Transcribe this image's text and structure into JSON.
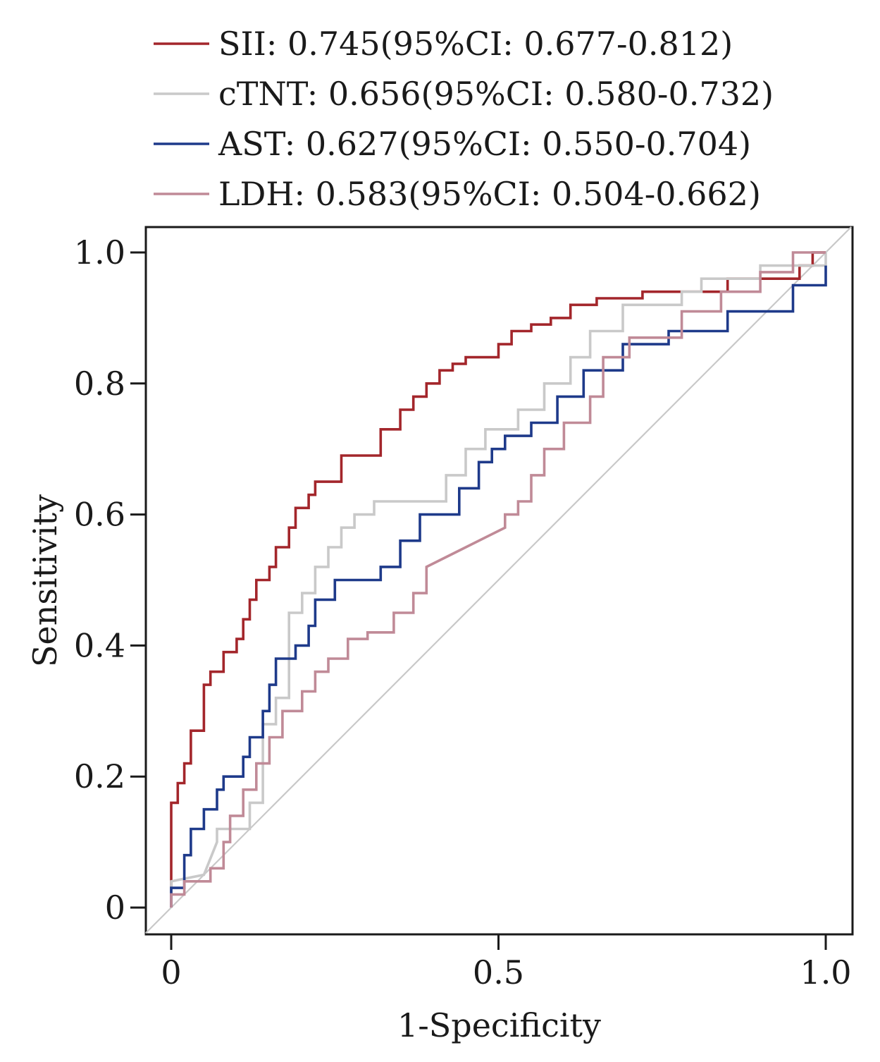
{
  "chart_data": {
    "type": "line",
    "xlabel": "1-Specificity",
    "ylabel": "Sensitivity",
    "xlim": [
      0,
      1.0
    ],
    "ylim": [
      0,
      1.0
    ],
    "x_ticks": [
      {
        "value": 0,
        "label": "0"
      },
      {
        "value": 0.5,
        "label": "0.5"
      },
      {
        "value": 1.0,
        "label": "1.0"
      }
    ],
    "y_ticks": [
      {
        "value": 0,
        "label": "0"
      },
      {
        "value": 0.2,
        "label": "0.2"
      },
      {
        "value": 0.4,
        "label": "0.4"
      },
      {
        "value": 0.6,
        "label": "0.6"
      },
      {
        "value": 0.8,
        "label": "0.8"
      },
      {
        "value": 1.0,
        "label": "1.0"
      }
    ],
    "legend_position": "top",
    "reference_line": {
      "x": [
        0,
        1
      ],
      "y": [
        0,
        1
      ],
      "color": "#c8c8c8"
    },
    "series": [
      {
        "name": "SII",
        "legend": "SII: 0.745(95%CI: 0.677-0.812)",
        "color": "#a3262b",
        "x": [
          0,
          0,
          0.01,
          0.01,
          0.02,
          0.02,
          0.03,
          0.03,
          0.05,
          0.05,
          0.06,
          0.06,
          0.08,
          0.08,
          0.1,
          0.1,
          0.11,
          0.11,
          0.12,
          0.12,
          0.13,
          0.13,
          0.15,
          0.15,
          0.16,
          0.16,
          0.18,
          0.18,
          0.19,
          0.19,
          0.21,
          0.21,
          0.22,
          0.22,
          0.23,
          0.23,
          0.24,
          0.24,
          0.26,
          0.26,
          0.32,
          0.32,
          0.35,
          0.35,
          0.37,
          0.37,
          0.39,
          0.39,
          0.41,
          0.41,
          0.43,
          0.43,
          0.45,
          0.45,
          0.5,
          0.5,
          0.52,
          0.52,
          0.55,
          0.55,
          0.58,
          0.58,
          0.61,
          0.61,
          0.65,
          0.65,
          0.72,
          0.72,
          0.85,
          0.85,
          0.96,
          0.96,
          0.98,
          0.98,
          1.0
        ],
        "y": [
          0,
          0.16,
          0.16,
          0.19,
          0.19,
          0.22,
          0.22,
          0.27,
          0.27,
          0.34,
          0.34,
          0.36,
          0.36,
          0.39,
          0.39,
          0.41,
          0.41,
          0.44,
          0.44,
          0.47,
          0.47,
          0.5,
          0.5,
          0.52,
          0.52,
          0.55,
          0.55,
          0.58,
          0.58,
          0.61,
          0.61,
          0.63,
          0.63,
          0.65,
          0.65,
          0.65,
          0.65,
          0.65,
          0.65,
          0.69,
          0.69,
          0.73,
          0.73,
          0.76,
          0.76,
          0.78,
          0.78,
          0.8,
          0.8,
          0.82,
          0.82,
          0.83,
          0.83,
          0.84,
          0.84,
          0.86,
          0.86,
          0.88,
          0.88,
          0.89,
          0.89,
          0.9,
          0.9,
          0.92,
          0.92,
          0.93,
          0.93,
          0.94,
          0.94,
          0.96,
          0.96,
          0.98,
          0.98,
          1.0,
          1.0
        ]
      },
      {
        "name": "cTNT",
        "legend": "cTNT: 0.656(95%CI: 0.580-0.732)",
        "color": "#c9c9c9",
        "x": [
          0,
          0,
          0.05,
          0.07,
          0.07,
          0.12,
          0.12,
          0.14,
          0.14,
          0.16,
          0.16,
          0.18,
          0.18,
          0.2,
          0.2,
          0.22,
          0.22,
          0.24,
          0.24,
          0.26,
          0.26,
          0.28,
          0.28,
          0.31,
          0.31,
          0.33,
          0.33,
          0.42,
          0.42,
          0.45,
          0.45,
          0.48,
          0.48,
          0.53,
          0.53,
          0.57,
          0.57,
          0.61,
          0.61,
          0.64,
          0.64,
          0.69,
          0.69,
          0.78,
          0.78,
          0.81,
          0.81,
          0.9,
          0.9,
          1.0,
          1.0
        ],
        "y": [
          0,
          0.04,
          0.05,
          0.1,
          0.12,
          0.12,
          0.16,
          0.16,
          0.28,
          0.28,
          0.32,
          0.32,
          0.45,
          0.45,
          0.48,
          0.48,
          0.52,
          0.52,
          0.55,
          0.55,
          0.58,
          0.58,
          0.6,
          0.6,
          0.62,
          0.62,
          0.62,
          0.62,
          0.66,
          0.66,
          0.7,
          0.7,
          0.73,
          0.73,
          0.76,
          0.76,
          0.8,
          0.8,
          0.84,
          0.84,
          0.88,
          0.88,
          0.92,
          0.92,
          0.94,
          0.94,
          0.96,
          0.96,
          0.98,
          0.98,
          1.0
        ]
      },
      {
        "name": "AST",
        "legend": "AST: 0.627(95%CI: 0.550-0.704)",
        "color": "#1e3a8a",
        "x": [
          0,
          0,
          0.02,
          0.02,
          0.03,
          0.03,
          0.05,
          0.05,
          0.07,
          0.07,
          0.08,
          0.08,
          0.09,
          0.09,
          0.11,
          0.11,
          0.12,
          0.12,
          0.14,
          0.14,
          0.15,
          0.15,
          0.16,
          0.16,
          0.17,
          0.17,
          0.19,
          0.19,
          0.21,
          0.21,
          0.22,
          0.22,
          0.25,
          0.25,
          0.28,
          0.28,
          0.32,
          0.32,
          0.35,
          0.35,
          0.38,
          0.38,
          0.44,
          0.44,
          0.47,
          0.47,
          0.49,
          0.49,
          0.51,
          0.51,
          0.55,
          0.55,
          0.59,
          0.59,
          0.63,
          0.63,
          0.69,
          0.69,
          0.76,
          0.76,
          0.85,
          0.85,
          0.95,
          0.95,
          1.0,
          1.0
        ],
        "y": [
          0,
          0.03,
          0.03,
          0.08,
          0.08,
          0.12,
          0.12,
          0.15,
          0.15,
          0.18,
          0.18,
          0.2,
          0.2,
          0.2,
          0.2,
          0.23,
          0.23,
          0.26,
          0.26,
          0.3,
          0.3,
          0.34,
          0.34,
          0.38,
          0.38,
          0.38,
          0.38,
          0.4,
          0.4,
          0.43,
          0.43,
          0.47,
          0.47,
          0.5,
          0.5,
          0.5,
          0.5,
          0.52,
          0.52,
          0.56,
          0.56,
          0.6,
          0.6,
          0.64,
          0.64,
          0.68,
          0.68,
          0.7,
          0.7,
          0.72,
          0.72,
          0.74,
          0.74,
          0.78,
          0.78,
          0.82,
          0.82,
          0.86,
          0.86,
          0.88,
          0.88,
          0.91,
          0.91,
          0.95,
          0.95,
          0.98
        ]
      },
      {
        "name": "LDH",
        "legend": "LDH: 0.583(95%CI: 0.504-0.662)",
        "color": "#c08a97",
        "x": [
          0,
          0,
          0.02,
          0.02,
          0.06,
          0.06,
          0.08,
          0.08,
          0.09,
          0.09,
          0.11,
          0.11,
          0.13,
          0.13,
          0.15,
          0.15,
          0.17,
          0.17,
          0.2,
          0.2,
          0.22,
          0.22,
          0.24,
          0.24,
          0.27,
          0.27,
          0.3,
          0.3,
          0.34,
          0.34,
          0.37,
          0.37,
          0.39,
          0.39,
          0.51,
          0.51,
          0.53,
          0.53,
          0.55,
          0.55,
          0.57,
          0.57,
          0.6,
          0.6,
          0.64,
          0.64,
          0.66,
          0.66,
          0.7,
          0.7,
          0.78,
          0.78,
          0.84,
          0.84,
          0.9,
          0.9,
          0.95,
          0.95,
          1.0
        ],
        "y": [
          0,
          0.02,
          0.02,
          0.04,
          0.04,
          0.06,
          0.06,
          0.1,
          0.1,
          0.14,
          0.14,
          0.18,
          0.18,
          0.22,
          0.22,
          0.26,
          0.26,
          0.3,
          0.3,
          0.33,
          0.33,
          0.36,
          0.36,
          0.38,
          0.38,
          0.41,
          0.41,
          0.42,
          0.42,
          0.45,
          0.45,
          0.48,
          0.48,
          0.52,
          0.58,
          0.6,
          0.6,
          0.62,
          0.62,
          0.66,
          0.66,
          0.7,
          0.7,
          0.74,
          0.74,
          0.78,
          0.78,
          0.84,
          0.84,
          0.87,
          0.87,
          0.91,
          0.91,
          0.94,
          0.94,
          0.97,
          0.97,
          1.0,
          1.0
        ]
      }
    ]
  }
}
